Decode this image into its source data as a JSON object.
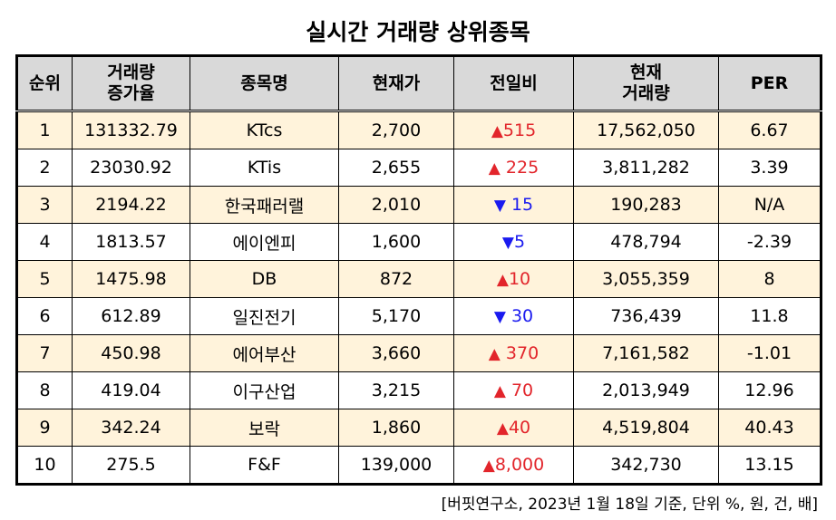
{
  "title": "실시간 거래량 상위종목",
  "headers": {
    "rank": "순위",
    "vol_inc_1": "거래량",
    "vol_inc_2": "증가율",
    "name": "종목명",
    "price": "현재가",
    "change": "전일비",
    "cur_vol_1": "현재",
    "cur_vol_2": "거래량",
    "per": "PER"
  },
  "rows": [
    {
      "rank": "1",
      "vol_inc": "131332.79",
      "name": "KTcs",
      "price": "2,700",
      "dir": "▲",
      "change": "515",
      "volume": "17,562,050",
      "per": "6.67"
    },
    {
      "rank": "2",
      "vol_inc": "23030.92",
      "name": "KTis",
      "price": "2,655",
      "dir": "▲",
      "change": " 225",
      "volume": "3,811,282",
      "per": "3.39"
    },
    {
      "rank": "3",
      "vol_inc": "2194.22",
      "name": "한국패러랠",
      "price": "2,010",
      "dir": "▼",
      "change": " 15",
      "volume": "190,283",
      "per": "N/A"
    },
    {
      "rank": "4",
      "vol_inc": "1813.57",
      "name": "에이엔피",
      "price": "1,600",
      "dir": "▼",
      "change": "5",
      "volume": "478,794",
      "per": "-2.39"
    },
    {
      "rank": "5",
      "vol_inc": "1475.98",
      "name": "DB",
      "price": "872",
      "dir": "▲",
      "change": "10",
      "volume": "3,055,359",
      "per": "8"
    },
    {
      "rank": "6",
      "vol_inc": "612.89",
      "name": "일진전기",
      "price": "5,170",
      "dir": "▼",
      "change": " 30",
      "volume": "736,439",
      "per": "11.8"
    },
    {
      "rank": "7",
      "vol_inc": "450.98",
      "name": "에어부산",
      "price": "3,660",
      "dir": "▲",
      "change": " 370",
      "volume": "7,161,582",
      "per": "-1.01"
    },
    {
      "rank": "8",
      "vol_inc": "419.04",
      "name": "이구산업",
      "price": "3,215",
      "dir": "▲",
      "change": " 70",
      "volume": "2,013,949",
      "per": "12.96"
    },
    {
      "rank": "9",
      "vol_inc": "342.24",
      "name": "보락",
      "price": "1,860",
      "dir": "▲",
      "change": "40",
      "volume": "4,519,804",
      "per": "40.43"
    },
    {
      "rank": "10",
      "vol_inc": "275.5",
      "name": "F&F",
      "price": "139,000",
      "dir": "▲",
      "change": "8,000",
      "volume": "342,730",
      "per": "13.15"
    }
  ],
  "colors": {
    "up": "#e2252b",
    "down": "#1a1aef",
    "header_bg": "#d9d9d9",
    "stripe_bg": "#fff3db"
  },
  "note": "[버핏연구소, 2023년 1월 18일 기준, 단위 %, 원, 건, 배]"
}
